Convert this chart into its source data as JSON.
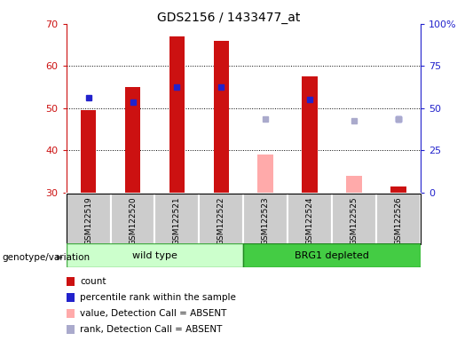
{
  "title": "GDS2156 / 1433477_at",
  "samples": [
    "GSM122519",
    "GSM122520",
    "GSM122521",
    "GSM122522",
    "GSM122523",
    "GSM122524",
    "GSM122525",
    "GSM122526"
  ],
  "bar_bottom": 30,
  "ylim_left": [
    30,
    70
  ],
  "ylim_right": [
    0,
    100
  ],
  "yticks_left": [
    30,
    40,
    50,
    60,
    70
  ],
  "yticks_right": [
    0,
    25,
    50,
    75,
    100
  ],
  "ytick_labels_right": [
    "0",
    "25",
    "50",
    "75",
    "100%"
  ],
  "red_bars": [
    49.5,
    55.0,
    67.0,
    66.0,
    null,
    57.5,
    null,
    31.5
  ],
  "pink_bars": [
    null,
    null,
    null,
    null,
    39.0,
    null,
    34.0,
    null
  ],
  "blue_squares": [
    52.5,
    51.5,
    55.0,
    55.0,
    null,
    52.0,
    null,
    47.5
  ],
  "lightblue_squares": [
    null,
    null,
    null,
    null,
    47.5,
    null,
    47.0,
    47.5
  ],
  "red_color": "#cc1111",
  "pink_color": "#ffaaaa",
  "blue_color": "#2222cc",
  "lightblue_color": "#aaaacc",
  "sample_bg_color": "#cccccc",
  "wt_color": "#ccffcc",
  "brg_color": "#44cc44",
  "grid_lines": [
    40,
    50,
    60
  ],
  "bar_width": 0.35,
  "legend_items": [
    {
      "label": "count",
      "color": "#cc1111"
    },
    {
      "label": "percentile rank within the sample",
      "color": "#2222cc"
    },
    {
      "label": "value, Detection Call = ABSENT",
      "color": "#ffaaaa"
    },
    {
      "label": "rank, Detection Call = ABSENT",
      "color": "#aaaacc"
    }
  ]
}
